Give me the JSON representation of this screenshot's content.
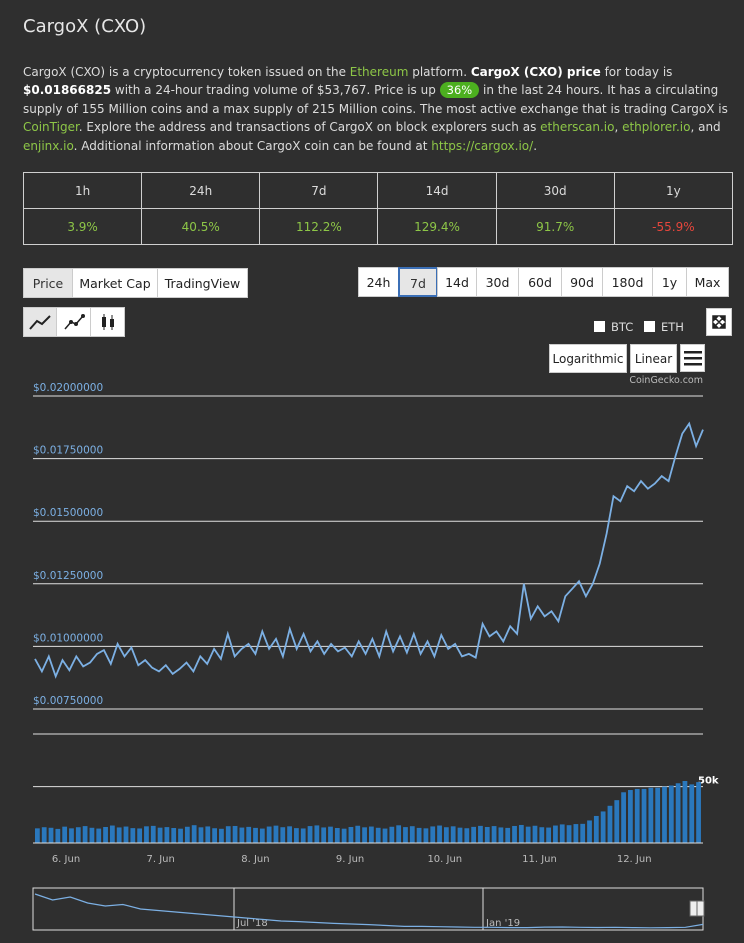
{
  "header": {
    "title": "CargoX (CXO)"
  },
  "description": [
    "CargoX (CXO) is a cryptocurrency token issued on the ",
    "Ethereum",
    " platform. ",
    "CargoX (CXO) price",
    " for today is ",
    "$0.01866825",
    " with a 24-hour trading volume of $53,767. Price is up ",
    "36%",
    " in the last 24 hours. It has a circulating supply of 155 Million coins and a max supply of 215 Million coins. The most active exchange that is trading CargoX is ",
    "CoinTiger",
    ". Explore the address and transactions of CargoX on block explorers such as ",
    "etherscan.io",
    ", ",
    "ethplorer.io",
    ", and ",
    "enjinx.io",
    ". Additional information about CargoX coin can be found at ",
    "https://cargox.io/",
    "."
  ],
  "table": {
    "headers": [
      "1h",
      "24h",
      "7d",
      "14d",
      "30d",
      "1y"
    ],
    "rows": [
      [
        "3.9%",
        "40.5%",
        "112.2%",
        "129.4%",
        "91.7%",
        "-55.9%"
      ]
    ]
  },
  "tabs": [
    "Price",
    "Market Cap",
    "TradingView"
  ],
  "active_tab_index": 0,
  "ranges": [
    "24h",
    "7d",
    "14d",
    "30d",
    "60d",
    "90d",
    "180d",
    "1y",
    "Max"
  ],
  "active_range_index": 1,
  "currencies": [
    "BTC",
    "ETH"
  ],
  "scales": [
    "Logarithmic",
    "Linear"
  ],
  "credit": "CoinGecko.com",
  "chart_data": {
    "type": "line",
    "color": "#7cb0e4",
    "bar_color": "#2a78bd",
    "x_labels": [
      "6. Jun",
      "7. Jun",
      "8. Jun",
      "9. Jun",
      "10. Jun",
      "11. Jun",
      "12. Jun"
    ],
    "ylim": [
      0.0065,
      0.0205
    ],
    "yticks": [
      {
        "value": 0.02,
        "label": "$0.02000000"
      },
      {
        "value": 0.0175,
        "label": "$0.01750000"
      },
      {
        "value": 0.015,
        "label": "$0.01500000"
      },
      {
        "value": 0.0125,
        "label": "$0.01250000"
      },
      {
        "value": 0.01,
        "label": "$0.01000000"
      },
      {
        "value": 0.0075,
        "label": "$0.00750000"
      }
    ],
    "grid": true,
    "values": [
      0.0095,
      0.009,
      0.0096,
      0.0088,
      0.00945,
      0.00905,
      0.0096,
      0.0092,
      0.00935,
      0.0097,
      0.00985,
      0.0093,
      0.0101,
      0.0096,
      0.00995,
      0.00925,
      0.00945,
      0.00915,
      0.009,
      0.00925,
      0.0089,
      0.0091,
      0.00935,
      0.009,
      0.0096,
      0.0093,
      0.0099,
      0.0095,
      0.0105,
      0.0096,
      0.0099,
      0.0101,
      0.0097,
      0.0106,
      0.0099,
      0.0103,
      0.0096,
      0.0107,
      0.0099,
      0.0105,
      0.0098,
      0.0102,
      0.0097,
      0.0101,
      0.0098,
      0.00995,
      0.0096,
      0.0102,
      0.0097,
      0.0103,
      0.0096,
      0.0106,
      0.0098,
      0.0104,
      0.00975,
      0.0105,
      0.0097,
      0.0102,
      0.0096,
      0.01045,
      0.0099,
      0.0101,
      0.0096,
      0.0097,
      0.00955,
      0.0109,
      0.0104,
      0.0106,
      0.0102,
      0.0108,
      0.0105,
      0.0125,
      0.0111,
      0.0116,
      0.0112,
      0.0114,
      0.011,
      0.012,
      0.0123,
      0.0126,
      0.012,
      0.0125,
      0.0133,
      0.0145,
      0.016,
      0.0158,
      0.0164,
      0.0162,
      0.0166,
      0.0163,
      0.0165,
      0.0168,
      0.0166,
      0.0176,
      0.0185,
      0.0189,
      0.018,
      0.01866
    ],
    "volume": {
      "y2lim": [
        0,
        55000
      ],
      "y2ticks": [
        {
          "value": 50000,
          "label": "50k"
        }
      ],
      "values": [
        13000,
        14000,
        13500,
        12500,
        14500,
        13000,
        14000,
        15000,
        13500,
        12800,
        14200,
        15500,
        13800,
        14600,
        13200,
        12900,
        14800,
        15200,
        13600,
        14100,
        13300,
        12700,
        14400,
        15800,
        13900,
        14700,
        13100,
        12600,
        14900,
        15100,
        13700,
        14300,
        13400,
        12800,
        14600,
        15400,
        14000,
        14800,
        13200,
        12900,
        15000,
        15600,
        13800,
        14500,
        13300,
        12700,
        14200,
        15300,
        13900,
        14600,
        13500,
        12800,
        14400,
        15700,
        14100,
        14900,
        13400,
        13000,
        14700,
        15500,
        14000,
        14800,
        13600,
        13100,
        14300,
        15200,
        14200,
        15000,
        13800,
        13400,
        15100,
        16000,
        14500,
        15300,
        14000,
        13700,
        15500,
        16500,
        15800,
        16800,
        17000,
        20000,
        24000,
        28000,
        33000,
        38000,
        45000,
        47000,
        48000,
        48000,
        49000,
        49000,
        50000,
        51000,
        53000,
        55000,
        52000,
        54000
      ]
    },
    "navigator": {
      "labels": [
        "Jul '18",
        "Jan '19"
      ],
      "ylim": [
        0,
        0.14
      ],
      "values": [
        0.12,
        0.1,
        0.11,
        0.09,
        0.08,
        0.085,
        0.07,
        0.065,
        0.06,
        0.055,
        0.05,
        0.045,
        0.04,
        0.035,
        0.03,
        0.028,
        0.025,
        0.022,
        0.02,
        0.018,
        0.015,
        0.012,
        0.012,
        0.011,
        0.01,
        0.009,
        0.009,
        0.008,
        0.008,
        0.0095,
        0.01,
        0.009,
        0.0085,
        0.009,
        0.008,
        0.0075,
        0.008,
        0.009,
        0.0186
      ]
    }
  }
}
